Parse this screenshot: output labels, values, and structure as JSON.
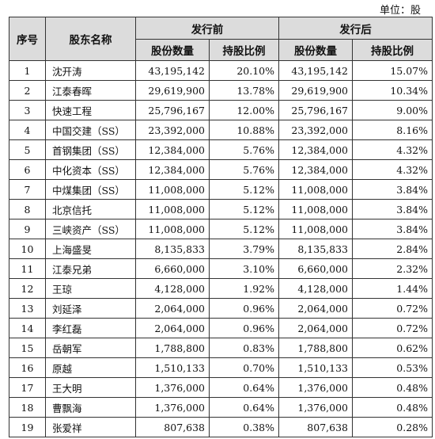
{
  "unit_label": "单位：股",
  "headers": {
    "seq": "序号",
    "holder": "股东名称",
    "before": "发行前",
    "after": "发行后",
    "shares": "股份数量",
    "ratio": "持股比例"
  },
  "rows": [
    {
      "seq": "1",
      "name": "沈开涛",
      "shares_before": "43,195,142",
      "ratio_before": "20.10%",
      "shares_after": "43,195,142",
      "ratio_after": "15.07%"
    },
    {
      "seq": "2",
      "name": "江泰春晖",
      "shares_before": "29,619,900",
      "ratio_before": "13.78%",
      "shares_after": "29,619,900",
      "ratio_after": "10.34%"
    },
    {
      "seq": "3",
      "name": "快速工程",
      "shares_before": "25,796,167",
      "ratio_before": "12.00%",
      "shares_after": "25,796,167",
      "ratio_after": "9.00%"
    },
    {
      "seq": "4",
      "name": "中国交建（SS）",
      "shares_before": "23,392,000",
      "ratio_before": "10.88%",
      "shares_after": "23,392,000",
      "ratio_after": "8.16%"
    },
    {
      "seq": "5",
      "name": "首钢集团（SS）",
      "shares_before": "12,384,000",
      "ratio_before": "5.76%",
      "shares_after": "12,384,000",
      "ratio_after": "4.32%"
    },
    {
      "seq": "6",
      "name": "中化资本（SS）",
      "shares_before": "12,384,000",
      "ratio_before": "5.76%",
      "shares_after": "12,384,000",
      "ratio_after": "4.32%"
    },
    {
      "seq": "7",
      "name": "中煤集团（SS）",
      "shares_before": "11,008,000",
      "ratio_before": "5.12%",
      "shares_after": "11,008,000",
      "ratio_after": "3.84%"
    },
    {
      "seq": "8",
      "name": "北京信托",
      "shares_before": "11,008,000",
      "ratio_before": "5.12%",
      "shares_after": "11,008,000",
      "ratio_after": "3.84%"
    },
    {
      "seq": "9",
      "name": "三峡资产（SS）",
      "shares_before": "11,008,000",
      "ratio_before": "5.12%",
      "shares_after": "11,008,000",
      "ratio_after": "3.84%"
    },
    {
      "seq": "10",
      "name": "上海盛旻",
      "shares_before": "8,135,833",
      "ratio_before": "3.79%",
      "shares_after": "8,135,833",
      "ratio_after": "2.84%"
    },
    {
      "seq": "11",
      "name": "江泰兄弟",
      "shares_before": "6,660,000",
      "ratio_before": "3.10%",
      "shares_after": "6,660,000",
      "ratio_after": "2.32%"
    },
    {
      "seq": "12",
      "name": "王琼",
      "shares_before": "4,128,000",
      "ratio_before": "1.92%",
      "shares_after": "4,128,000",
      "ratio_after": "1.44%"
    },
    {
      "seq": "13",
      "name": "刘延泽",
      "shares_before": "2,064,000",
      "ratio_before": "0.96%",
      "shares_after": "2,064,000",
      "ratio_after": "0.72%"
    },
    {
      "seq": "14",
      "name": "李红磊",
      "shares_before": "2,064,000",
      "ratio_before": "0.96%",
      "shares_after": "2,064,000",
      "ratio_after": "0.72%"
    },
    {
      "seq": "15",
      "name": "岳朝军",
      "shares_before": "1,788,800",
      "ratio_before": "0.83%",
      "shares_after": "1,788,800",
      "ratio_after": "0.62%"
    },
    {
      "seq": "16",
      "name": "原越",
      "shares_before": "1,510,133",
      "ratio_before": "0.70%",
      "shares_after": "1,510,133",
      "ratio_after": "0.53%"
    },
    {
      "seq": "17",
      "name": "王大明",
      "shares_before": "1,376,000",
      "ratio_before": "0.64%",
      "shares_after": "1,376,000",
      "ratio_after": "0.48%"
    },
    {
      "seq": "18",
      "name": "曹飘海",
      "shares_before": "1,376,000",
      "ratio_before": "0.64%",
      "shares_after": "1,376,000",
      "ratio_after": "0.48%"
    },
    {
      "seq": "19",
      "name": "张爱祥",
      "shares_before": "807,638",
      "ratio_before": "0.38%",
      "shares_after": "807,638",
      "ratio_after": "0.28%"
    }
  ]
}
